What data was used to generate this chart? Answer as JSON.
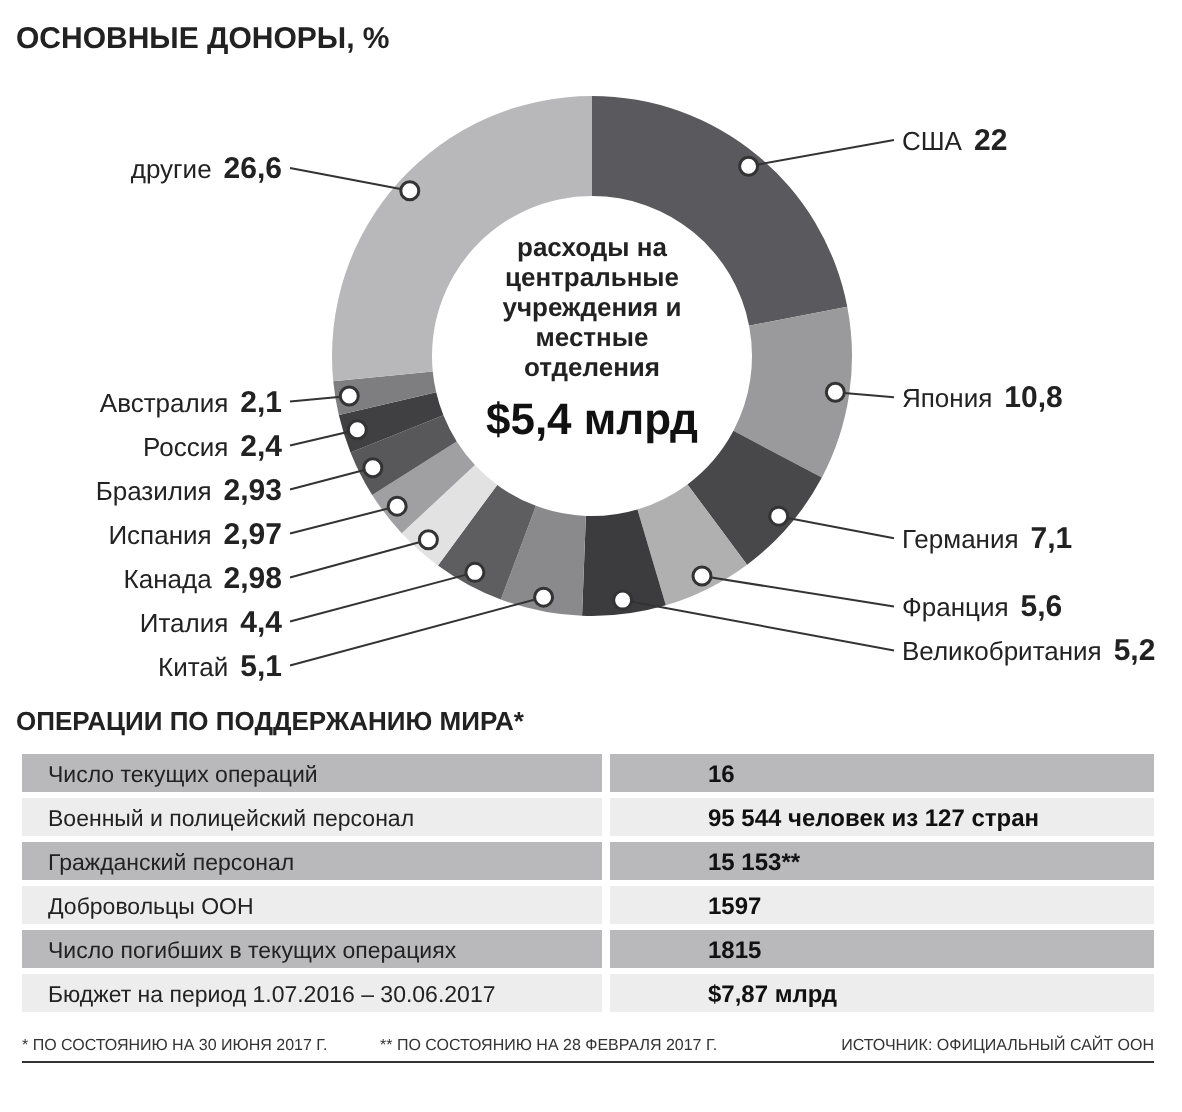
{
  "chart_data": [
    {
      "type": "donut",
      "title": "ОСНОВНЫЕ ДОНОРЫ, %",
      "categories": [
        "США",
        "Япония",
        "Германия",
        "Франция",
        "Великобритания",
        "Китай",
        "Италия",
        "Канада",
        "Испания",
        "Бразилия",
        "Россия",
        "Австралия",
        "другие"
      ],
      "values": [
        22,
        10.8,
        7.1,
        5.6,
        5.2,
        5.1,
        4.4,
        2.98,
        2.97,
        2.93,
        2.4,
        2.1,
        26.6
      ],
      "colors": [
        "#5a5a5e",
        "#9a9a9c",
        "#48484a",
        "#b0b0b0",
        "#3c3c3e",
        "#8a8a8c",
        "#5e5e60",
        "#e2e2e2",
        "#a0a0a2",
        "#58585a",
        "#404042",
        "#7e7e80",
        "#b8b8ba"
      ],
      "value_labels": [
        "22",
        "10,8",
        "7,1",
        "5,6",
        "5,2",
        "5,1",
        "4,4",
        "2,98",
        "2,97",
        "2,93",
        "2,4",
        "2,1",
        "26,6"
      ],
      "annotations": [
        "расходы на центральные учреждения и местные отделения",
        "$5,4 млрд"
      ]
    },
    {
      "type": "other",
      "title": "ОПЕРАЦИИ ПО ПОДДЕРЖАНИЮ МИРА*",
      "categories": [
        "Число текущих операций",
        "Военный и полицейский персонал",
        "Гражданский персонал",
        "Добровольцы ООН",
        "Число погибших в текущих операциях",
        "Бюджет на период 1.07.2016 – 30.06.2017"
      ],
      "value_labels": [
        "16",
        "95 544 человек из 127 стран",
        "15 153**",
        "1597",
        "1815",
        "$7,87 млрд"
      ],
      "annotations": [
        "* ПО СОСТОЯНИЮ НА 30 ИЮНЯ 2017 Г.",
        "** ПО СОСТОЯНИЮ НА 28 ФЕВРАЛЯ 2017 Г.",
        "ИСТОЧНИК: ОФИЦИАЛЬНЫЙ САЙТ ООН"
      ]
    }
  ]
}
